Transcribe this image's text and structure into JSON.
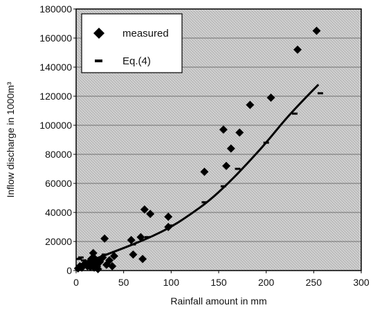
{
  "chart_data": {
    "type": "scatter",
    "xlabel": "Rainfall amount in mm",
    "ylabel": "Inflow discharge in 1000m³",
    "xlim": [
      0,
      300
    ],
    "ylim": [
      0,
      180000
    ],
    "xticks": [
      0,
      50,
      100,
      150,
      200,
      250,
      300
    ],
    "yticks": [
      0,
      20000,
      40000,
      60000,
      80000,
      100000,
      120000,
      140000,
      160000,
      180000
    ],
    "xtick_labels": [
      "0",
      "50",
      "100",
      "150",
      "200",
      "250",
      "300"
    ],
    "ytick_labels": [
      "0",
      "20000",
      "40000",
      "60000",
      "80000",
      "100000",
      "120000",
      "140000",
      "160000",
      "180000"
    ],
    "grid": "horizontal",
    "legend_position": "top-left",
    "legend": [
      {
        "label": "measured",
        "marker": "diamond"
      },
      {
        "label": "Eq.(4)",
        "marker": "dash"
      }
    ],
    "series": [
      {
        "name": "measured",
        "marker": "diamond",
        "color": "#000000",
        "points": [
          [
            2,
            1500
          ],
          [
            4,
            3000
          ],
          [
            6,
            2000
          ],
          [
            8,
            4000
          ],
          [
            10,
            5000
          ],
          [
            12,
            3000
          ],
          [
            14,
            6000
          ],
          [
            15,
            2500
          ],
          [
            16,
            8000
          ],
          [
            17,
            4000
          ],
          [
            18,
            9000
          ],
          [
            18,
            12000
          ],
          [
            19,
            2000
          ],
          [
            20,
            5500
          ],
          [
            20,
            8000
          ],
          [
            22,
            3000
          ],
          [
            23,
            1000
          ],
          [
            25,
            6000
          ],
          [
            28,
            9000
          ],
          [
            30,
            22000
          ],
          [
            32,
            4000
          ],
          [
            35,
            7000
          ],
          [
            38,
            3000
          ],
          [
            40,
            10000
          ],
          [
            58,
            21000
          ],
          [
            60,
            11000
          ],
          [
            68,
            23000
          ],
          [
            70,
            8000
          ],
          [
            72,
            42000
          ],
          [
            78,
            39000
          ],
          [
            97,
            37000
          ],
          [
            97,
            30000
          ],
          [
            135,
            68000
          ],
          [
            155,
            97000
          ],
          [
            158,
            72000
          ],
          [
            163,
            84000
          ],
          [
            172,
            95000
          ],
          [
            183,
            114000
          ],
          [
            205,
            119000
          ],
          [
            233,
            152000
          ],
          [
            253,
            165000
          ]
        ]
      },
      {
        "name": "Eq.(4)",
        "marker": "dash",
        "color": "#000000",
        "points": [
          [
            3,
            8000
          ],
          [
            5,
            9000
          ],
          [
            8,
            7000
          ],
          [
            15,
            7500
          ],
          [
            30,
            11000
          ],
          [
            60,
            18000
          ],
          [
            75,
            23000
          ],
          [
            100,
            31000
          ],
          [
            135,
            47000
          ],
          [
            155,
            58000
          ],
          [
            170,
            70000
          ],
          [
            200,
            88000
          ],
          [
            230,
            108000
          ],
          [
            257,
            122000
          ]
        ]
      }
    ],
    "fit_curve": {
      "name": "Eq.(4)",
      "color": "#000000",
      "x": [
        0,
        20,
        40,
        60,
        80,
        100,
        120,
        140,
        160,
        180,
        200,
        220,
        240,
        255
      ],
      "y": [
        3000,
        8000,
        13000,
        18000,
        23500,
        30000,
        38500,
        48000,
        60000,
        73500,
        88000,
        104000,
        118000,
        128000
      ]
    }
  }
}
